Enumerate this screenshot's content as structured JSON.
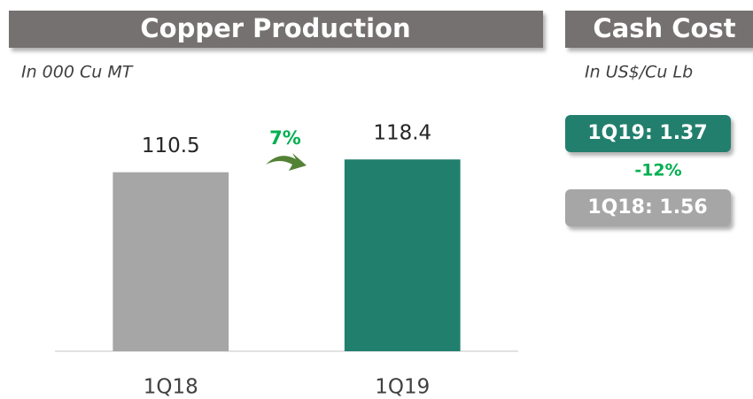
{
  "chart_data": {
    "type": "bar",
    "title": "Copper Production",
    "subtitle": "In 000 Cu MT",
    "categories": [
      "1Q18",
      "1Q19"
    ],
    "values": [
      110.5,
      118.4
    ],
    "colors": [
      "#a6a6a6",
      "#217f6e"
    ],
    "ylim": [
      0,
      130
    ],
    "annotation": "7%",
    "annotation_color": "#00b050"
  },
  "cash_cost": {
    "title": "Cash Cost",
    "subtitle": "In US$/Cu Lb",
    "boxes": [
      "1Q19: 1.37",
      "1Q18: 1.56"
    ],
    "box_colors": [
      "#217f6e",
      "#a6a6a6"
    ],
    "change": "-12%"
  }
}
